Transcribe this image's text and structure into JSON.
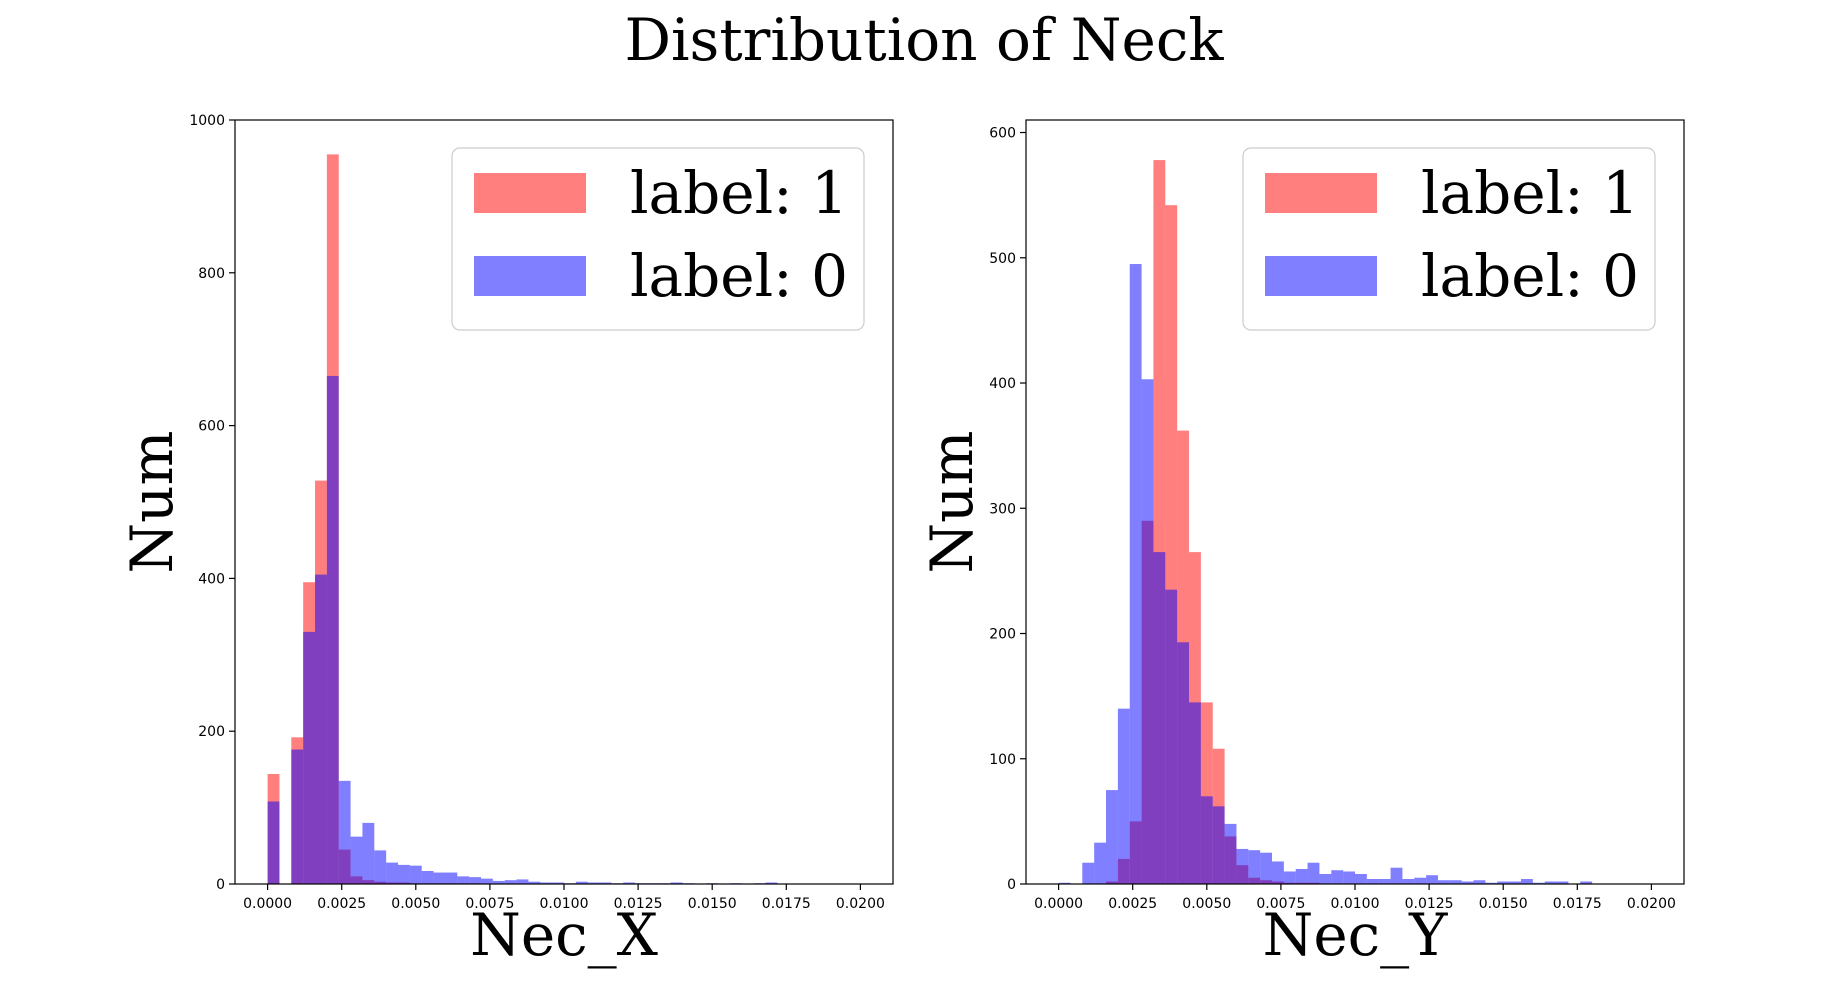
{
  "figure": {
    "title": "Distribution of Neck"
  },
  "colors": {
    "label_1": "#ff0000",
    "label_0": "#0000ff",
    "bar_alpha": 0.5
  },
  "chart_data": [
    {
      "type": "histogram",
      "title": "",
      "xlabel": "Nec_X",
      "ylabel": "Num",
      "xlim": [
        -0.0011,
        0.0211
      ],
      "ylim": [
        0,
        1000
      ],
      "xticks": [
        0.0,
        0.0025,
        0.005,
        0.0075,
        0.01,
        0.0125,
        0.015,
        0.0175,
        0.02
      ],
      "xtick_labels": [
        "0.0000",
        "0.0025",
        "0.0050",
        "0.0075",
        "0.0100",
        "0.0125",
        "0.0150",
        "0.0175",
        "0.0200"
      ],
      "yticks": [
        0,
        200,
        400,
        600,
        800,
        1000
      ],
      "ytick_labels": [
        "0",
        "200",
        "400",
        "600",
        "800",
        "1000"
      ],
      "bin_range": [
        0.0,
        0.02
      ],
      "bin_count": 50,
      "legend": {
        "placement": "upper right",
        "entries": [
          "label: 1",
          "label: 0"
        ]
      },
      "series": [
        {
          "name": "label: 1",
          "color": "#ff0000",
          "values": [
            144,
            0,
            192,
            395,
            528,
            955,
            45,
            10,
            5,
            3,
            2,
            2,
            1,
            1,
            1,
            1,
            1,
            1,
            0,
            0,
            0,
            0,
            0,
            0,
            0,
            0,
            0,
            0,
            0,
            0,
            0,
            0,
            0,
            0,
            0,
            0,
            0,
            0,
            0,
            0,
            0,
            0,
            0,
            0,
            0,
            0,
            0,
            0,
            0,
            0
          ]
        },
        {
          "name": "label: 0",
          "color": "#0000ff",
          "values": [
            108,
            0,
            176,
            330,
            405,
            665,
            135,
            62,
            80,
            44,
            28,
            25,
            24,
            17,
            15,
            15,
            10,
            9,
            7,
            4,
            5,
            6,
            3,
            2,
            2,
            1,
            3,
            2,
            2,
            1,
            2,
            1,
            1,
            1,
            2,
            1,
            0,
            1,
            0,
            1,
            0,
            1,
            2,
            0,
            0,
            0,
            0,
            0,
            0,
            0
          ]
        }
      ]
    },
    {
      "type": "histogram",
      "title": "",
      "xlabel": "Nec_Y",
      "ylabel": "Num",
      "xlim": [
        -0.0011,
        0.0211
      ],
      "ylim": [
        0,
        610
      ],
      "xticks": [
        0.0,
        0.0025,
        0.005,
        0.0075,
        0.01,
        0.0125,
        0.015,
        0.0175,
        0.02
      ],
      "xtick_labels": [
        "0.0000",
        "0.0025",
        "0.0050",
        "0.0075",
        "0.0100",
        "0.0125",
        "0.0150",
        "0.0175",
        "0.0200"
      ],
      "yticks": [
        0,
        100,
        200,
        300,
        400,
        500,
        600
      ],
      "ytick_labels": [
        "0",
        "100",
        "200",
        "300",
        "400",
        "500",
        "600"
      ],
      "bin_range": [
        0.0,
        0.02
      ],
      "bin_count": 50,
      "legend": {
        "placement": "upper right",
        "entries": [
          "label: 1",
          "label: 0"
        ]
      },
      "series": [
        {
          "name": "label: 1",
          "color": "#ff0000",
          "values": [
            0,
            0,
            0,
            0,
            2,
            20,
            50,
            290,
            578,
            542,
            362,
            265,
            145,
            108,
            38,
            15,
            5,
            3,
            2,
            1,
            1,
            1,
            0,
            0,
            0,
            0,
            0,
            0,
            0,
            0,
            0,
            0,
            0,
            0,
            0,
            0,
            0,
            0,
            0,
            0,
            0,
            0,
            0,
            0,
            0,
            0,
            0,
            0,
            0,
            0
          ]
        },
        {
          "name": "label: 0",
          "color": "#0000ff",
          "values": [
            1,
            0,
            17,
            33,
            75,
            140,
            495,
            403,
            265,
            235,
            193,
            145,
            70,
            62,
            48,
            28,
            27,
            25,
            18,
            10,
            12,
            17,
            8,
            11,
            10,
            8,
            4,
            4,
            13,
            4,
            5,
            7,
            3,
            3,
            2,
            3,
            1,
            2,
            2,
            4,
            1,
            2,
            2,
            0,
            2,
            0,
            0,
            0,
            0,
            0
          ]
        }
      ]
    }
  ]
}
